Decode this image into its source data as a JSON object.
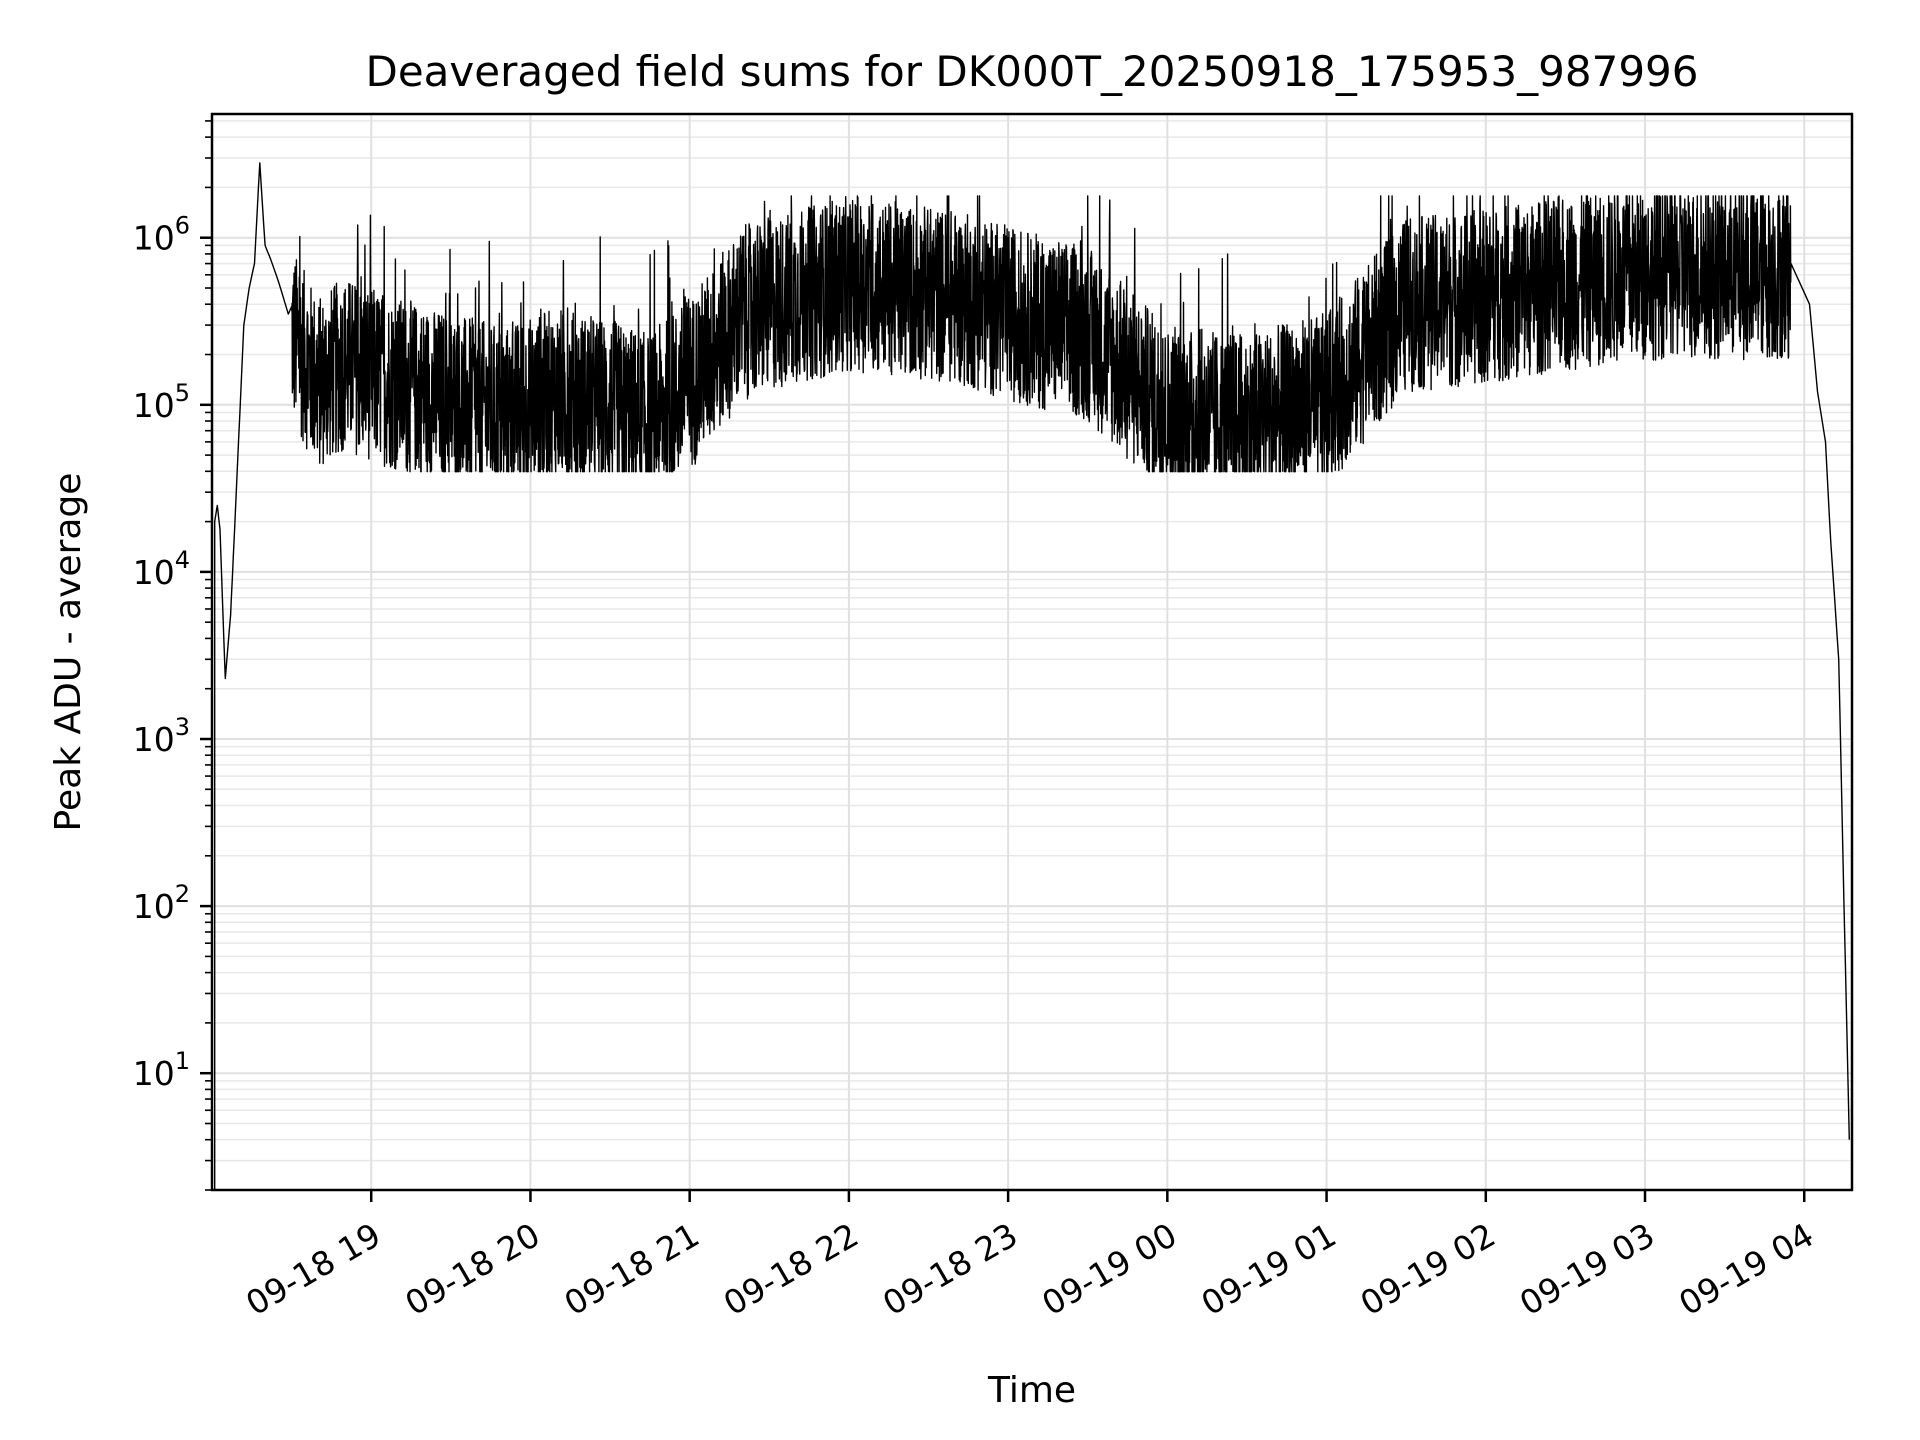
{
  "chart_data": {
    "type": "line",
    "title": "Deaveraged field sums for DK000T_20250918_175953_987996",
    "xlabel": "Time",
    "ylabel": "Peak ADU - average",
    "yscale": "log",
    "ylim": [
      2,
      5500000
    ],
    "xlim": [
      "2025-09-18 18:00",
      "2025-09-19 04:18"
    ],
    "grid": "on (major and minor)",
    "line_color": "#000000",
    "x_ticks": [
      "09-18 19",
      "09-18 20",
      "09-18 21",
      "09-18 22",
      "09-18 23",
      "09-19 00",
      "09-19 01",
      "09-19 02",
      "09-19 03",
      "09-19 04"
    ],
    "x_tick_values": [
      "2025-09-18 19:00",
      "2025-09-18 20:00",
      "2025-09-18 21:00",
      "2025-09-18 22:00",
      "2025-09-18 23:00",
      "2025-09-19 00:00",
      "2025-09-19 01:00",
      "2025-09-19 02:00",
      "2025-09-19 03:00",
      "2025-09-19 04:00"
    ],
    "y_ticks": [
      {
        "value": 10,
        "base": "10",
        "exp": "1"
      },
      {
        "value": 100,
        "base": "10",
        "exp": "2"
      },
      {
        "value": 1000,
        "base": "10",
        "exp": "3"
      },
      {
        "value": 10000,
        "base": "10",
        "exp": "4"
      },
      {
        "value": 100000,
        "base": "10",
        "exp": "5"
      },
      {
        "value": 1000000,
        "base": "10",
        "exp": "6"
      }
    ],
    "series": [
      {
        "x": [
          "2025-09-18 18:01",
          "2025-09-18 18:02",
          "2025-09-18 18:03",
          "2025-09-18 18:05",
          "2025-09-18 18:07",
          "2025-09-18 18:08",
          "2025-09-18 18:10",
          "2025-09-18 18:12",
          "2025-09-18 18:14",
          "2025-09-18 18:16",
          "2025-09-18 18:18",
          "2025-09-18 18:20",
          "2025-09-18 18:22",
          "2025-09-18 18:25",
          "2025-09-18 18:30",
          "2025-09-18 18:40",
          "2025-09-18 18:50",
          "2025-09-18 19:10",
          "2025-09-18 19:30",
          "2025-09-18 19:50",
          "2025-09-18 20:10",
          "2025-09-18 20:30",
          "2025-09-18 20:45",
          "2025-09-18 21:00",
          "2025-09-18 21:20",
          "2025-09-18 21:40",
          "2025-09-18 22:00",
          "2025-09-18 22:20",
          "2025-09-18 22:40",
          "2025-09-18 23:00",
          "2025-09-18 23:30",
          "2025-09-19 00:00",
          "2025-09-19 00:30",
          "2025-09-19 01:00",
          "2025-09-19 01:30",
          "2025-09-19 02:00",
          "2025-09-19 02:30",
          "2025-09-19 03:00",
          "2025-09-19 03:30",
          "2025-09-19 03:55",
          "2025-09-19 04:02",
          "2025-09-19 04:05",
          "2025-09-19 04:08",
          "2025-09-19 04:10",
          "2025-09-19 04:13",
          "2025-09-19 04:15",
          "2025-09-19 04:17"
        ],
        "y": [
          20000,
          25000,
          18000,
          2300,
          5500,
          12000,
          60000,
          300000,
          500000,
          700000,
          2800000,
          900000,
          750000,
          550000,
          300000,
          150000,
          200000,
          150000,
          120000,
          100000,
          130000,
          110000,
          90000,
          150000,
          400000,
          500000,
          600000,
          550000,
          500000,
          400000,
          300000,
          100000,
          90000,
          120000,
          450000,
          500000,
          600000,
          700000,
          700000,
          700000,
          400000,
          120000,
          60000,
          15000,
          3000,
          100,
          4
        ]
      }
    ]
  }
}
